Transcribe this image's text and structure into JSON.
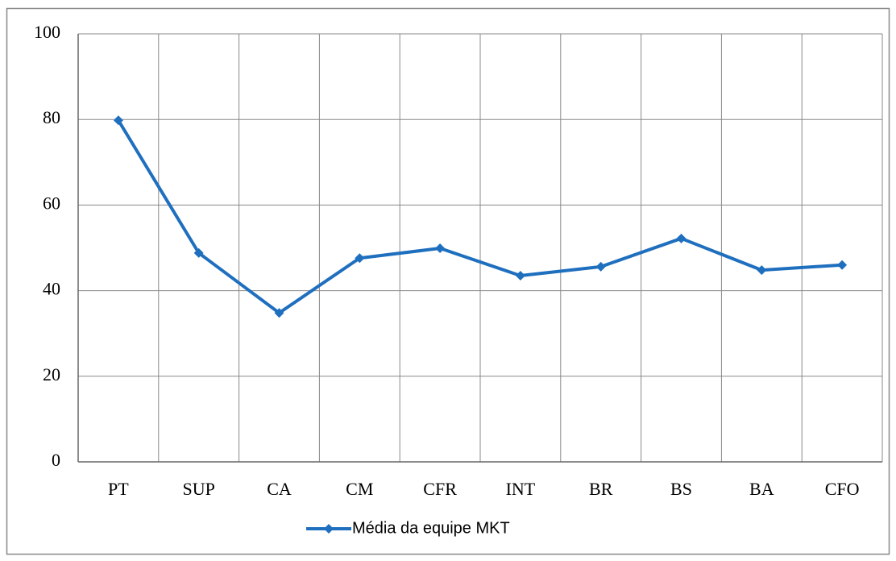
{
  "chart_data": {
    "type": "line",
    "categories": [
      "PT",
      "SUP",
      "CA",
      "CM",
      "CFR",
      "INT",
      "BR",
      "BS",
      "BA",
      "CFO"
    ],
    "series": [
      {
        "name": "Média da equipe MKT",
        "color": "#1f6fbf",
        "values": [
          79.8,
          48.8,
          34.8,
          47.6,
          49.9,
          43.5,
          45.6,
          52.2,
          44.8,
          46
        ]
      }
    ],
    "ylim": [
      0,
      100
    ],
    "yticks": [
      0,
      20,
      40,
      60,
      80,
      100
    ],
    "grid": true,
    "legend": "bottom"
  }
}
